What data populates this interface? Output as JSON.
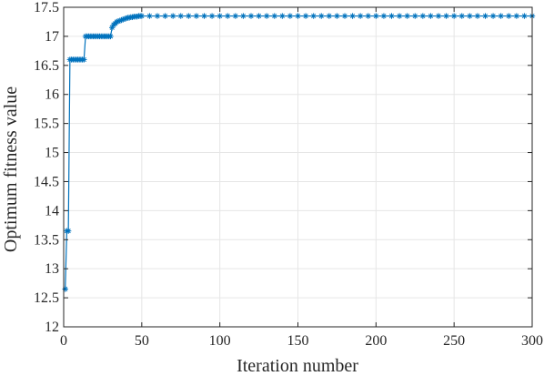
{
  "chart_data": {
    "type": "line",
    "xlabel": "Iteration number",
    "ylabel": "Optimum fitness value",
    "xlim": [
      0,
      300
    ],
    "ylim": [
      12,
      17.5
    ],
    "x_ticks": [
      0,
      50,
      100,
      150,
      200,
      250,
      300
    ],
    "y_ticks": [
      12,
      12.5,
      13,
      13.5,
      14,
      14.5,
      15,
      15.5,
      16,
      16.5,
      17,
      17.5
    ],
    "grid": true,
    "line_color": "#0072bd",
    "marker": "asterisk",
    "series": [
      {
        "x": [
          1,
          2,
          3,
          4,
          5,
          6,
          7,
          8,
          9,
          10,
          11,
          12,
          13,
          14,
          15,
          16,
          17,
          18,
          19,
          20,
          21,
          22,
          23,
          24,
          25,
          26,
          27,
          28,
          29,
          30,
          31,
          32,
          33,
          34,
          35,
          36,
          37,
          38,
          39,
          40,
          41,
          42,
          43,
          44,
          45,
          46,
          47,
          48,
          49,
          50,
          55,
          60,
          65,
          70,
          75,
          80,
          85,
          90,
          95,
          100,
          105,
          110,
          115,
          120,
          125,
          130,
          135,
          140,
          145,
          150,
          155,
          160,
          165,
          170,
          175,
          180,
          185,
          190,
          195,
          200,
          205,
          210,
          215,
          220,
          225,
          230,
          235,
          240,
          245,
          250,
          255,
          260,
          265,
          270,
          275,
          280,
          285,
          290,
          295,
          300
        ],
        "y": [
          12.65,
          13.65,
          13.65,
          16.6,
          16.6,
          16.6,
          16.6,
          16.6,
          16.6,
          16.6,
          16.6,
          16.6,
          16.6,
          17.0,
          17.0,
          17.0,
          17.0,
          17.0,
          17.0,
          17.0,
          17.0,
          17.0,
          17.0,
          17.0,
          17.0,
          17.0,
          17.0,
          17.0,
          17.0,
          17.0,
          17.15,
          17.2,
          17.22,
          17.25,
          17.26,
          17.27,
          17.28,
          17.29,
          17.3,
          17.31,
          17.32,
          17.32,
          17.33,
          17.33,
          17.34,
          17.34,
          17.34,
          17.35,
          17.35,
          17.35,
          17.35,
          17.35,
          17.35,
          17.35,
          17.35,
          17.35,
          17.35,
          17.35,
          17.35,
          17.35,
          17.35,
          17.35,
          17.35,
          17.35,
          17.35,
          17.35,
          17.35,
          17.35,
          17.35,
          17.35,
          17.35,
          17.35,
          17.35,
          17.35,
          17.35,
          17.35,
          17.35,
          17.35,
          17.35,
          17.35,
          17.35,
          17.35,
          17.35,
          17.35,
          17.35,
          17.35,
          17.35,
          17.35,
          17.35,
          17.35,
          17.35,
          17.35,
          17.35,
          17.35,
          17.35,
          17.35,
          17.35,
          17.35,
          17.35,
          17.35
        ]
      }
    ]
  }
}
